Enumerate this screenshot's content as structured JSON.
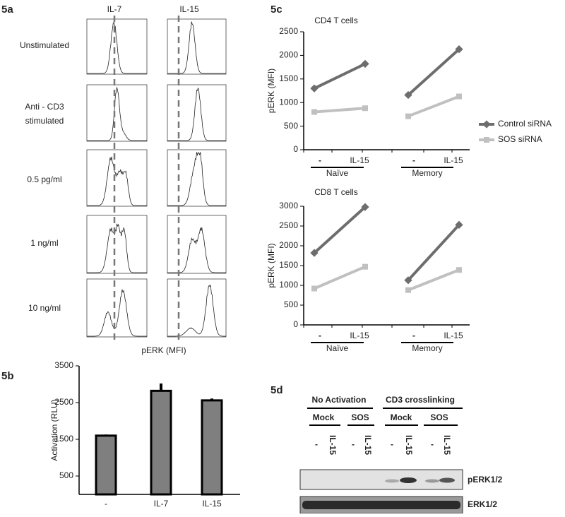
{
  "panels": {
    "a": {
      "label": "5a",
      "columns": [
        "IL-7",
        "IL-15"
      ],
      "rows": [
        [
          "Unstimulated"
        ],
        [
          "Anti - CD3",
          "stimulated"
        ],
        [
          "0.5 pg/ml"
        ],
        [
          "1 ng/ml"
        ],
        [
          "10 ng/ml"
        ]
      ],
      "x_label": "pERK (MFI)"
    },
    "d": {
      "label": "5d",
      "groups": [
        "No Activation",
        "CD3 crosslinking"
      ],
      "subgroups": [
        "Mock",
        "SOS",
        "Mock",
        "SOS"
      ],
      "lanes": [
        "-",
        "IL-15",
        "-",
        "IL-15",
        "-",
        "IL-15",
        "-",
        "IL-15"
      ],
      "rows": [
        "pERK1/2",
        "ERK1/2"
      ]
    }
  },
  "chart_data": [
    {
      "type": "bar",
      "panel": "5b",
      "y_label": "Activation (RLU)",
      "categories": [
        "-",
        "IL-7",
        "IL-15"
      ],
      "values": [
        1600,
        2820,
        2560
      ],
      "errors": [
        30,
        200,
        50
      ],
      "color": "#7f7f7f",
      "ylim": [
        0,
        3500
      ],
      "yticks": [
        500,
        1500,
        2500,
        3500
      ]
    },
    {
      "type": "line",
      "panel": "5c",
      "title": "CD4 T cells",
      "y_label": "pERK (MFI)",
      "categories": [
        "-",
        "IL-15",
        null,
        "-",
        "IL-15"
      ],
      "groups": [
        "Naïve",
        "Memory"
      ],
      "series": [
        {
          "name": "Control siRNA",
          "color": "#6d6d6d",
          "values": [
            1300,
            1820,
            null,
            1160,
            2130
          ]
        },
        {
          "name": "SOS siRNA",
          "color": "#c0c0c0",
          "values": [
            800,
            880,
            null,
            710,
            1130
          ]
        }
      ],
      "ylim": [
        0,
        2500
      ],
      "yticks": [
        0,
        500,
        1000,
        1500,
        2000,
        2500
      ]
    },
    {
      "type": "line",
      "title": "CD8 T cells",
      "y_label": "pERK (MFI)",
      "categories": [
        "-",
        "IL-15",
        null,
        "-",
        "IL-15"
      ],
      "groups": [
        "Naïve",
        "Memory"
      ],
      "series": [
        {
          "name": "Control siRNA",
          "color": "#6d6d6d",
          "values": [
            1820,
            2980,
            null,
            1130,
            2530
          ]
        },
        {
          "name": "SOS siRNA",
          "color": "#c0c0c0",
          "values": [
            920,
            1470,
            null,
            880,
            1390
          ]
        }
      ],
      "ylim": [
        0,
        3000
      ],
      "yticks": [
        0,
        500,
        1000,
        1500,
        2000,
        2500,
        3000
      ]
    }
  ]
}
